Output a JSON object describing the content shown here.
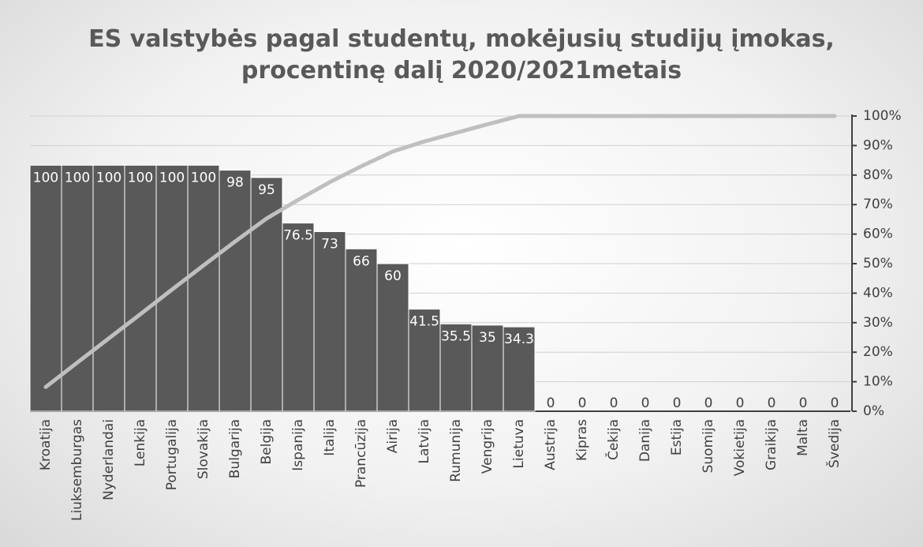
{
  "chart_data": {
    "type": "pareto",
    "title": "ES valstybės pagal studentų, mokėjusių studijų įmokas, procentinę dalį 2020/2021metais",
    "categories": [
      "Kroatija",
      "Liuksemburgas",
      "Nyderlandai",
      "Lenkija",
      "Portugalija",
      "Slovakija",
      "Bulgarija",
      "Belgija",
      "Ispanija",
      "Italija",
      "Prancūzija",
      "Airija",
      "Latvija",
      "Rumunija",
      "Vengrija",
      "Lietuva",
      "Austrija",
      "Kipras",
      "Čekija",
      "Danija",
      "Estija",
      "Suomija",
      "Vokietija",
      "Graikija",
      "Malta",
      "Švedija"
    ],
    "series": [
      {
        "color": "#595959",
        "values": [
          100,
          100,
          100,
          100,
          100,
          100,
          98,
          95,
          76.5,
          73,
          66,
          60,
          41.5,
          35.5,
          35,
          34.3,
          0,
          0,
          0,
          0,
          0,
          0,
          0,
          0,
          0,
          0
        ]
      },
      {
        "color": "#bfbfbf",
        "axis": "y2",
        "values": [
          8.2,
          16.5,
          24.7,
          32.9,
          41.2,
          49.4,
          57.5,
          65.3,
          71.6,
          77.6,
          83.0,
          88.0,
          91.4,
          94.3,
          97.2,
          100,
          100,
          100,
          100,
          100,
          100,
          100,
          100,
          100,
          100,
          100
        ]
      }
    ],
    "ylim": [
      0,
      120
    ],
    "y2lim": [
      0,
      100
    ],
    "y2ticks": [
      {
        "value": 0,
        "label": "0%"
      },
      {
        "value": 10,
        "label": "10%"
      },
      {
        "value": 20,
        "label": "20%"
      },
      {
        "value": 30,
        "label": "30%"
      },
      {
        "value": 40,
        "label": "40%"
      },
      {
        "value": 50,
        "label": "50%"
      },
      {
        "value": 60,
        "label": "60%"
      },
      {
        "value": 70,
        "label": "70%"
      },
      {
        "value": 80,
        "label": "80%"
      },
      {
        "value": 90,
        "label": "90%"
      },
      {
        "value": 100,
        "label": "100%"
      }
    ],
    "grid": true
  }
}
